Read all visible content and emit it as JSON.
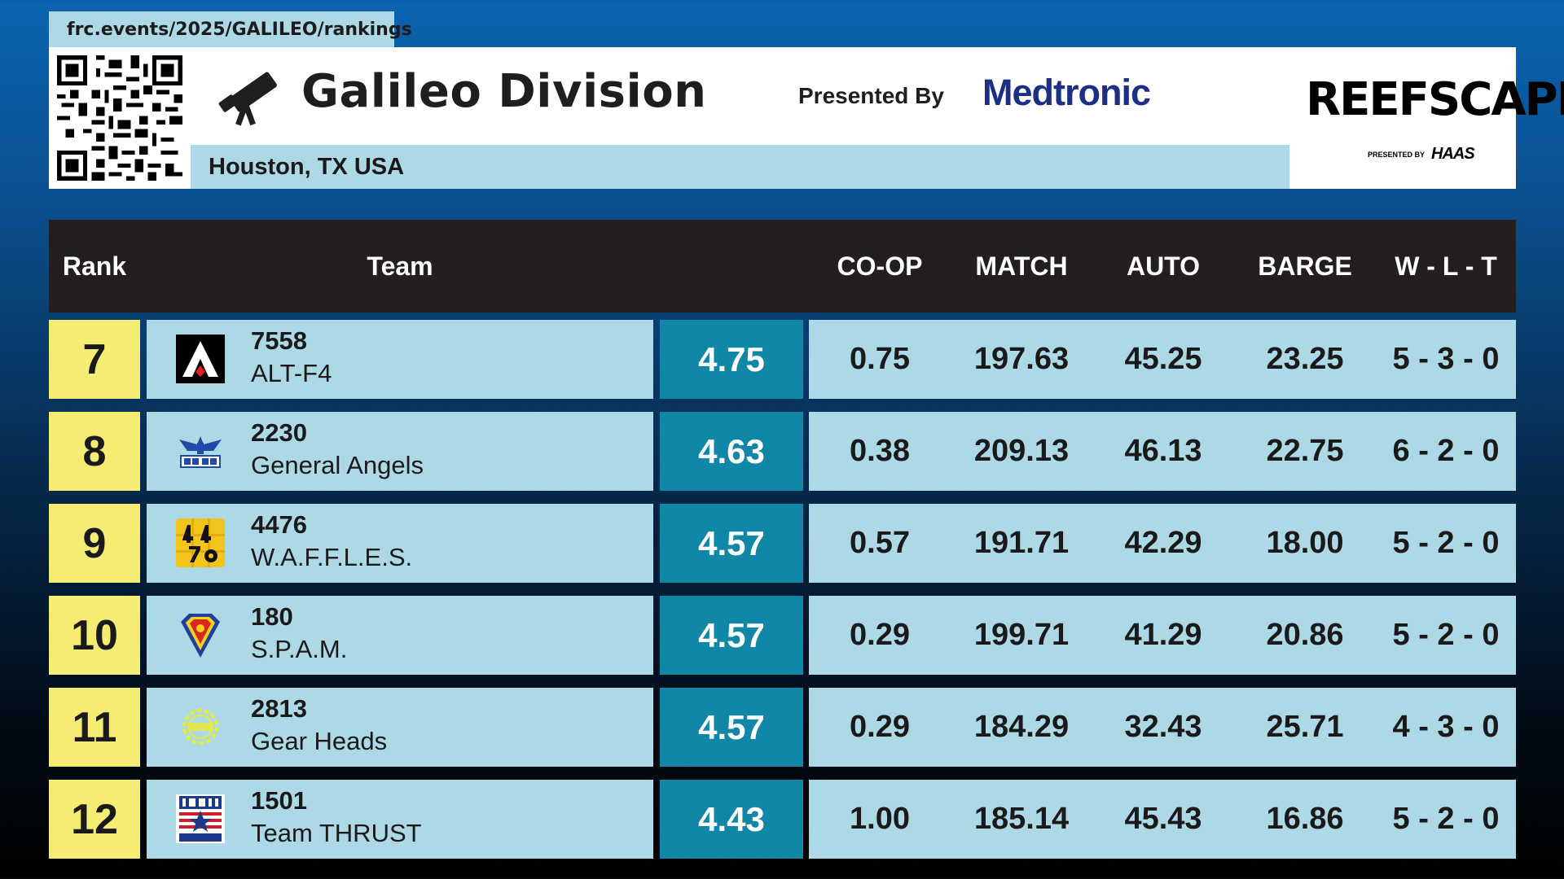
{
  "url": "frc.events/2025/GALILEO/rankings",
  "header": {
    "division_title": "Galileo Division",
    "location": "Houston, TX USA",
    "presented_by_label": "Presented By",
    "sponsor": "Medtronic",
    "game_name": "REEFSCAPE",
    "game_presented_by": "PRESENTED BY",
    "game_presenting_sponsor": "HAAS",
    "icons": [
      "qr-code-icon",
      "telescope-icon"
    ]
  },
  "table": {
    "columns": [
      "Rank",
      "Team",
      "CO-OP",
      "MATCH",
      "AUTO",
      "BARGE",
      "W - L - T"
    ],
    "rows": [
      {
        "rank": "7",
        "team_number": "7558",
        "team_name": "ALT-F4",
        "ranking_score": "4.75",
        "coop": "0.75",
        "match": "197.63",
        "auto": "45.25",
        "barge": "23.25",
        "wlt": "5 - 3 - 0",
        "logo": "altf4-logo-icon"
      },
      {
        "rank": "8",
        "team_number": "2230",
        "team_name": "General Angels",
        "ranking_score": "4.63",
        "coop": "0.38",
        "match": "209.13",
        "auto": "46.13",
        "barge": "22.75",
        "wlt": "6 - 2 - 0",
        "logo": "general-angels-logo-icon"
      },
      {
        "rank": "9",
        "team_number": "4476",
        "team_name": "W.A.F.F.L.E.S.",
        "ranking_score": "4.57",
        "coop": "0.57",
        "match": "191.71",
        "auto": "42.29",
        "barge": "18.00",
        "wlt": "5 - 2 - 0",
        "logo": "waffles-logo-icon"
      },
      {
        "rank": "10",
        "team_number": "180",
        "team_name": "S.P.A.M.",
        "ranking_score": "4.57",
        "coop": "0.29",
        "match": "199.71",
        "auto": "41.29",
        "barge": "20.86",
        "wlt": "5 - 2 - 0",
        "logo": "spam-logo-icon"
      },
      {
        "rank": "11",
        "team_number": "2813",
        "team_name": "Gear Heads",
        "ranking_score": "4.57",
        "coop": "0.29",
        "match": "184.29",
        "auto": "32.43",
        "barge": "25.71",
        "wlt": "4 - 3 - 0",
        "logo": "gear-heads-logo-icon"
      },
      {
        "rank": "12",
        "team_number": "1501",
        "team_name": "Team THRUST",
        "ranking_score": "4.43",
        "coop": "1.00",
        "match": "185.14",
        "auto": "45.43",
        "barge": "16.86",
        "wlt": "5 - 2 - 0",
        "logo": "thrust-logo-icon"
      }
    ]
  },
  "colors": {
    "rank_cell": "#f5ec74",
    "team_cell": "#add8e6",
    "ranking_score_cell": "#1087a6",
    "header_bar": "#231f20",
    "sponsor": "#1c2f87"
  }
}
